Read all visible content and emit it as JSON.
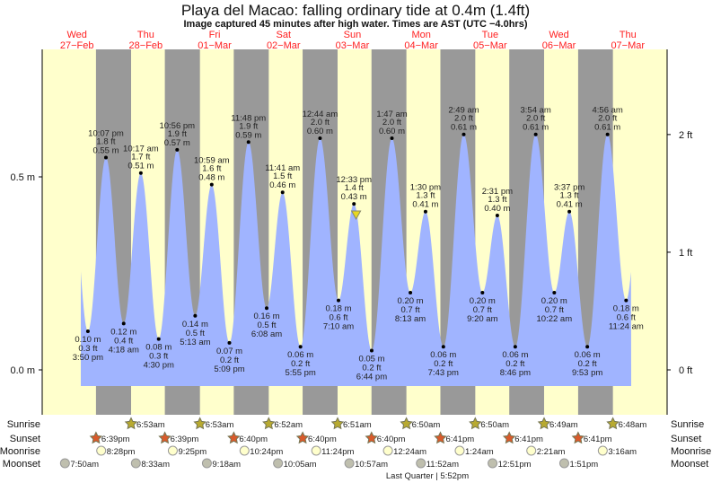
{
  "chart_data": {
    "type": "area",
    "title": "Playa del Macao: falling  ordinary tide at 0.4m (1.4ft)",
    "subtitle": "Image captured 45 minutes after high water. Times are AST (UTC −4.0hrs)",
    "days": [
      {
        "dow": "Wed",
        "date": "27−Feb"
      },
      {
        "dow": "Thu",
        "date": "28−Feb"
      },
      {
        "dow": "Fri",
        "date": "01−Mar"
      },
      {
        "dow": "Sat",
        "date": "02−Mar"
      },
      {
        "dow": "Sun",
        "date": "03−Mar"
      },
      {
        "dow": "Mon",
        "date": "04−Mar"
      },
      {
        "dow": "Tue",
        "date": "05−Mar"
      },
      {
        "dow": "Wed",
        "date": "06−Mar"
      },
      {
        "dow": "Thu",
        "date": "07−Mar"
      }
    ],
    "ylim_m": [
      -0.06,
      0.9
    ],
    "y_ticks_left": [
      {
        "v": 0.5,
        "label": "0.5 m"
      },
      {
        "v": 0.0,
        "label": "0.0 m"
      }
    ],
    "y_ticks_right": [
      {
        "ft": 2,
        "label": "2 ft"
      },
      {
        "ft": 1,
        "label": "1 ft"
      },
      {
        "ft": 0,
        "label": "0 ft"
      }
    ],
    "current": {
      "day": 4,
      "time": "1:18 pm",
      "m": 0.4
    },
    "tides": [
      {
        "day": 0,
        "type": "low",
        "time": "3:50 pm",
        "ft": "0.3 ft",
        "m": 0.1,
        "m_label": "0.10 m"
      },
      {
        "day": 0,
        "type": "high",
        "time": "10:07 pm",
        "ft": "1.8 ft",
        "m": 0.55,
        "m_label": "0.55 m"
      },
      {
        "day": 1,
        "type": "low",
        "time": "4:18 am",
        "ft": "0.4 ft",
        "m": 0.12,
        "m_label": "0.12 m"
      },
      {
        "day": 1,
        "type": "high",
        "time": "10:17 am",
        "ft": "1.7 ft",
        "m": 0.51,
        "m_label": "0.51 m"
      },
      {
        "day": 1,
        "type": "low",
        "time": "4:30 pm",
        "ft": "0.3 ft",
        "m": 0.08,
        "m_label": "0.08 m"
      },
      {
        "day": 1,
        "type": "high",
        "time": "10:56 pm",
        "ft": "1.9 ft",
        "m": 0.57,
        "m_label": "0.57 m"
      },
      {
        "day": 2,
        "type": "low",
        "time": "5:13 am",
        "ft": "0.5 ft",
        "m": 0.14,
        "m_label": "0.14 m"
      },
      {
        "day": 2,
        "type": "high",
        "time": "10:59 am",
        "ft": "1.6 ft",
        "m": 0.48,
        "m_label": "0.48 m"
      },
      {
        "day": 2,
        "type": "low",
        "time": "5:09 pm",
        "ft": "0.2 ft",
        "m": 0.07,
        "m_label": "0.07 m"
      },
      {
        "day": 2,
        "type": "high",
        "time": "11:48 pm",
        "ft": "1.9 ft",
        "m": 0.59,
        "m_label": "0.59 m"
      },
      {
        "day": 3,
        "type": "low",
        "time": "6:08 am",
        "ft": "0.5 ft",
        "m": 0.16,
        "m_label": "0.16 m"
      },
      {
        "day": 3,
        "type": "high",
        "time": "11:41 am",
        "ft": "1.5 ft",
        "m": 0.46,
        "m_label": "0.46 m"
      },
      {
        "day": 3,
        "type": "low",
        "time": "5:55 pm",
        "ft": "0.2 ft",
        "m": 0.06,
        "m_label": "0.06 m"
      },
      {
        "day": 4,
        "type": "high",
        "time": "12:44 am",
        "ft": "2.0 ft",
        "m": 0.6,
        "m_label": "0.60 m"
      },
      {
        "day": 4,
        "type": "low",
        "time": "7:10 am",
        "ft": "0.6 ft",
        "m": 0.18,
        "m_label": "0.18 m"
      },
      {
        "day": 4,
        "type": "high",
        "time": "12:33 pm",
        "ft": "1.4 ft",
        "m": 0.43,
        "m_label": "0.43 m"
      },
      {
        "day": 4,
        "type": "low",
        "time": "6:44 pm",
        "ft": "0.2 ft",
        "m": 0.05,
        "m_label": "0.05 m"
      },
      {
        "day": 5,
        "type": "high",
        "time": "1:47 am",
        "ft": "2.0 ft",
        "m": 0.6,
        "m_label": "0.60 m"
      },
      {
        "day": 5,
        "type": "low",
        "time": "8:13 am",
        "ft": "0.7 ft",
        "m": 0.2,
        "m_label": "0.20 m"
      },
      {
        "day": 5,
        "type": "high",
        "time": "1:30 pm",
        "ft": "1.3 ft",
        "m": 0.41,
        "m_label": "0.41 m"
      },
      {
        "day": 5,
        "type": "low",
        "time": "7:43 pm",
        "ft": "0.2 ft",
        "m": 0.06,
        "m_label": "0.06 m"
      },
      {
        "day": 6,
        "type": "high",
        "time": "2:49 am",
        "ft": "2.0 ft",
        "m": 0.61,
        "m_label": "0.61 m"
      },
      {
        "day": 6,
        "type": "low",
        "time": "9:20 am",
        "ft": "0.7 ft",
        "m": 0.2,
        "m_label": "0.20 m"
      },
      {
        "day": 6,
        "type": "high",
        "time": "2:31 pm",
        "ft": "1.3 ft",
        "m": 0.4,
        "m_label": "0.40 m"
      },
      {
        "day": 6,
        "type": "low",
        "time": "8:46 pm",
        "ft": "0.2 ft",
        "m": 0.06,
        "m_label": "0.06 m"
      },
      {
        "day": 7,
        "type": "high",
        "time": "3:54 am",
        "ft": "2.0 ft",
        "m": 0.61,
        "m_label": "0.61 m"
      },
      {
        "day": 7,
        "type": "low",
        "time": "10:22 am",
        "ft": "0.7 ft",
        "m": 0.2,
        "m_label": "0.20 m"
      },
      {
        "day": 7,
        "type": "high",
        "time": "3:37 pm",
        "ft": "1.3 ft",
        "m": 0.41,
        "m_label": "0.41 m"
      },
      {
        "day": 7,
        "type": "low",
        "time": "9:53 pm",
        "ft": "0.2 ft",
        "m": 0.06,
        "m_label": "0.06 m"
      },
      {
        "day": 8,
        "type": "high",
        "time": "4:56 am",
        "ft": "2.0 ft",
        "m": 0.61,
        "m_label": "0.61 m"
      },
      {
        "day": 8,
        "type": "low",
        "time": "11:24 am",
        "ft": "0.6 ft",
        "m": 0.18,
        "m_label": "0.18 m"
      }
    ],
    "rows": {
      "sunrise": {
        "label": "Sunrise",
        "events": [
          {
            "day": 1,
            "time": "6:53am"
          },
          {
            "day": 2,
            "time": "6:53am"
          },
          {
            "day": 3,
            "time": "6:52am"
          },
          {
            "day": 4,
            "time": "6:51am"
          },
          {
            "day": 5,
            "time": "6:50am"
          },
          {
            "day": 6,
            "time": "6:50am"
          },
          {
            "day": 7,
            "time": "6:49am"
          },
          {
            "day": 8,
            "time": "6:48am"
          }
        ]
      },
      "sunset": {
        "label": "Sunset",
        "events": [
          {
            "day": 0,
            "time": "6:39pm"
          },
          {
            "day": 1,
            "time": "6:39pm"
          },
          {
            "day": 2,
            "time": "6:40pm"
          },
          {
            "day": 3,
            "time": "6:40pm"
          },
          {
            "day": 4,
            "time": "6:40pm"
          },
          {
            "day": 5,
            "time": "6:41pm"
          },
          {
            "day": 6,
            "time": "6:41pm"
          },
          {
            "day": 7,
            "time": "6:41pm"
          }
        ]
      },
      "moonrise": {
        "label": "Moonrise",
        "events": [
          {
            "day": 0,
            "time": "8:28pm"
          },
          {
            "day": 1,
            "time": "9:25pm"
          },
          {
            "day": 2,
            "time": "10:24pm"
          },
          {
            "day": 3,
            "time": "11:24pm"
          },
          {
            "day": 5,
            "time": "12:24am"
          },
          {
            "day": 6,
            "time": "1:24am"
          },
          {
            "day": 7,
            "time": "2:21am"
          },
          {
            "day": 8,
            "time": "3:16am"
          }
        ]
      },
      "moonset": {
        "label": "Moonset",
        "events": [
          {
            "day": 0,
            "time": "7:50am"
          },
          {
            "day": 1,
            "time": "8:33am"
          },
          {
            "day": 2,
            "time": "9:18am"
          },
          {
            "day": 3,
            "time": "10:05am"
          },
          {
            "day": 4,
            "time": "10:57am"
          },
          {
            "day": 5,
            "time": "11:52am"
          },
          {
            "day": 6,
            "time": "12:51pm"
          },
          {
            "day": 7,
            "time": "1:51pm"
          }
        ]
      }
    },
    "moon_phase": "Last Quarter | 5:52pm",
    "colors": {
      "day": "#ffffcc",
      "night": "#999999",
      "water": "#a0b4ff",
      "dayText": "#ff2020",
      "sunrise": "#b8aa30",
      "sunset": "#d95a2b",
      "moonrise": "#ffffcc",
      "moonset": "#bfbfae",
      "marker": "#e8d820"
    }
  }
}
